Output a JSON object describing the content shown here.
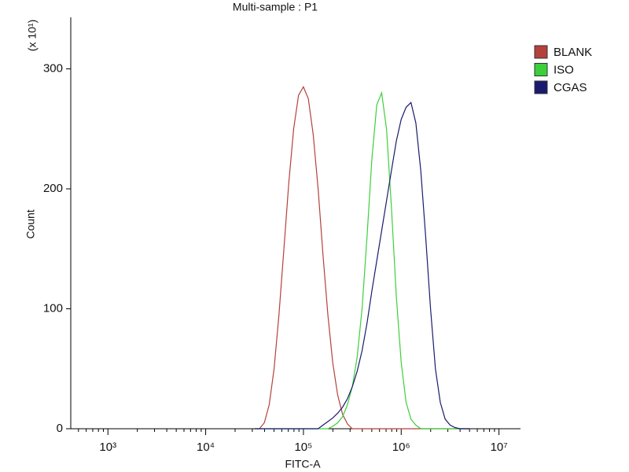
{
  "chart_data": {
    "type": "line",
    "title": "Multi-sample : P1",
    "x_label": "FITC-A",
    "y_label": "Count",
    "y_multiplier": "(x 10¹)",
    "x_scale": "log",
    "legend": "right",
    "xlim": [
      417,
      16600000
    ],
    "ylim": [
      0,
      343
    ],
    "xticks": [
      {
        "value": 1000,
        "label": "10³"
      },
      {
        "value": 10000,
        "label": "10⁴"
      },
      {
        "value": 100000,
        "label": "10⁵"
      },
      {
        "value": 1000000,
        "label": "10⁶"
      },
      {
        "value": 10000000,
        "label": "10⁷"
      }
    ],
    "yticks": [
      0,
      100,
      200,
      300
    ],
    "x": [
      31623,
      35481,
      39811,
      44668,
      50119,
      56234,
      63096,
      70795,
      79433,
      89125,
      100000,
      112202,
      125893,
      141254,
      158489,
      177828,
      199526,
      223872,
      251189,
      281838,
      316228,
      354813,
      398107,
      446684,
      501187,
      562341,
      630957,
      707946,
      794328,
      891251,
      1000000,
      1122018,
      1258925,
      1412538,
      1584893,
      1778279,
      1995262,
      2238721,
      2511886,
      2818383,
      3162278,
      3548134,
      3981072,
      4466836,
      5011872
    ],
    "series": [
      {
        "name": "BLANK",
        "color": "#b5413c",
        "values": [
          0,
          0,
          5,
          20,
          50,
          95,
          150,
          205,
          250,
          278,
          285,
          275,
          245,
          200,
          145,
          95,
          55,
          28,
          12,
          4,
          0,
          0,
          0,
          0,
          0,
          0,
          0,
          0,
          0,
          0,
          0,
          0,
          0,
          0,
          0,
          0,
          0,
          0,
          0,
          0,
          0,
          0,
          0,
          0,
          0
        ]
      },
      {
        "name": "ISO",
        "color": "#3ccf3c",
        "values": [
          0,
          0,
          0,
          0,
          0,
          0,
          0,
          0,
          0,
          0,
          0,
          0,
          0,
          0,
          0,
          0,
          2,
          5,
          10,
          20,
          35,
          60,
          100,
          160,
          225,
          270,
          280,
          250,
          185,
          110,
          55,
          22,
          8,
          3,
          0,
          0,
          0,
          0,
          0,
          0,
          0,
          0,
          0,
          0,
          0
        ]
      },
      {
        "name": "CGAS",
        "color": "#1a1a6e",
        "values": [
          0,
          0,
          0,
          0,
          0,
          0,
          0,
          0,
          0,
          0,
          0,
          0,
          0,
          0,
          3,
          6,
          9,
          13,
          18,
          25,
          35,
          48,
          65,
          88,
          115,
          140,
          165,
          190,
          215,
          240,
          258,
          268,
          272,
          255,
          215,
          160,
          100,
          50,
          22,
          8,
          3,
          1,
          0,
          0,
          0
        ]
      }
    ]
  }
}
